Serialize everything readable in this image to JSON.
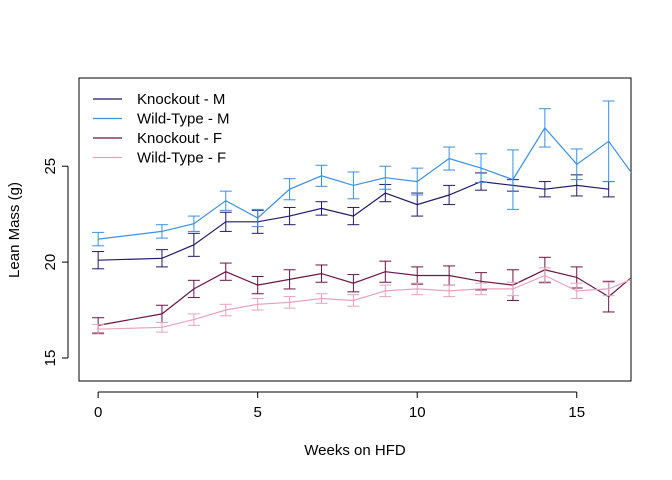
{
  "chart_data": {
    "type": "line",
    "title": "",
    "xlabel": "Weeks on HFD",
    "ylabel": "Lean Mass (g)",
    "xlim": [
      -0.6,
      16.7
    ],
    "ylim": [
      13.8,
      29.6
    ],
    "xticks": [
      0,
      5,
      10,
      15
    ],
    "yticks": [
      15,
      20,
      25
    ],
    "grid": false,
    "legend_position": "top-left",
    "error_bars": true,
    "series": [
      {
        "name": "Knockout - M",
        "color": "#1f1c6b",
        "x": [
          0,
          2,
          3,
          4,
          5,
          6,
          7,
          8,
          9,
          10,
          11,
          12,
          13,
          14,
          15,
          16
        ],
        "values": [
          20.1,
          20.2,
          20.9,
          22.1,
          22.1,
          22.4,
          22.8,
          22.4,
          23.6,
          23.0,
          23.5,
          24.2,
          24.0,
          23.8,
          24.0,
          23.8
        ],
        "error": [
          0.45,
          0.45,
          0.6,
          0.5,
          0.6,
          0.45,
          0.35,
          0.45,
          0.45,
          0.6,
          0.5,
          0.45,
          0.3,
          0.4,
          0.55,
          0.4
        ]
      },
      {
        "name": "Wild-Type - M",
        "color": "#3b8fe6",
        "x": [
          0,
          2,
          3,
          4,
          5,
          6,
          7,
          8,
          9,
          10,
          11,
          12,
          13,
          14,
          15,
          16,
          17
        ],
        "values": [
          21.2,
          21.6,
          22.0,
          23.2,
          22.3,
          23.8,
          24.5,
          24.0,
          24.4,
          24.2,
          25.4,
          24.9,
          24.3,
          27.0,
          25.1,
          26.3,
          24.0
        ],
        "error": [
          0.35,
          0.35,
          0.4,
          0.5,
          0.45,
          0.55,
          0.55,
          0.7,
          0.6,
          0.7,
          0.6,
          0.75,
          1.55,
          1.0,
          0.8,
          2.1,
          1.0
        ]
      },
      {
        "name": "Knockout - F",
        "color": "#6b1548",
        "x": [
          0,
          2,
          3,
          4,
          5,
          6,
          7,
          8,
          9,
          10,
          11,
          12,
          13,
          14,
          15,
          16,
          17
        ],
        "values": [
          16.7,
          17.3,
          18.6,
          19.5,
          18.8,
          19.1,
          19.4,
          18.9,
          19.5,
          19.3,
          19.3,
          19.0,
          18.8,
          19.6,
          19.2,
          18.2,
          19.6
        ],
        "error": [
          0.4,
          0.45,
          0.45,
          0.45,
          0.45,
          0.5,
          0.45,
          0.45,
          0.55,
          0.45,
          0.5,
          0.45,
          0.8,
          0.65,
          0.55,
          0.8,
          0.6
        ]
      },
      {
        "name": "Wild-Type - F",
        "color": "#e8a3bc",
        "x": [
          0,
          2,
          3,
          4,
          5,
          6,
          7,
          8,
          9,
          10,
          11,
          12,
          13,
          14,
          15,
          16,
          17
        ],
        "values": [
          16.5,
          16.6,
          17.0,
          17.5,
          17.8,
          17.9,
          18.1,
          18.0,
          18.5,
          18.6,
          18.5,
          18.6,
          18.6,
          19.3,
          18.5,
          18.6,
          19.3
        ],
        "error": [
          0.25,
          0.25,
          0.3,
          0.3,
          0.3,
          0.3,
          0.25,
          0.3,
          0.3,
          0.3,
          0.3,
          0.3,
          0.35,
          0.4,
          0.4,
          0.35,
          0.3
        ]
      }
    ]
  }
}
